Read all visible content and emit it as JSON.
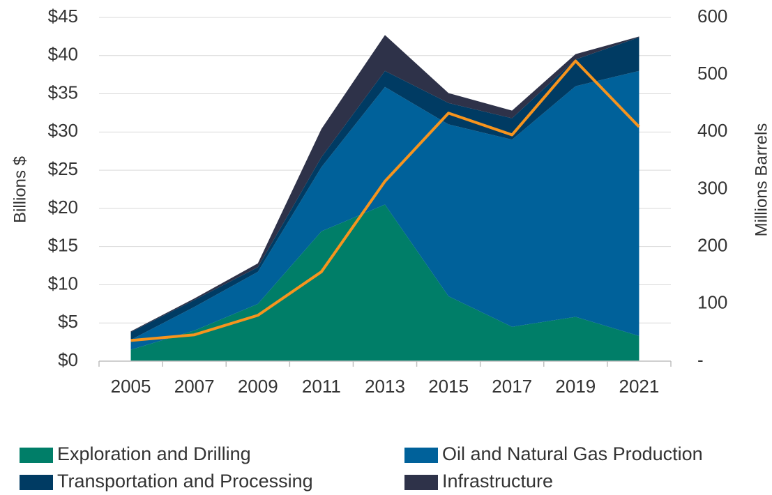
{
  "chart_data": {
    "type": "stacked_area_line",
    "categories": [
      "2005",
      "2007",
      "2009",
      "2011",
      "2013",
      "2015",
      "2017",
      "2019",
      "2021"
    ],
    "ylabel": "Billions $",
    "y2label": "Millions Barrels",
    "ylim": [
      0,
      45
    ],
    "yticks": [
      {
        "value": 0,
        "label": "$0"
      },
      {
        "value": 5,
        "label": "$5"
      },
      {
        "value": 10,
        "label": "$10"
      },
      {
        "value": 15,
        "label": "$15"
      },
      {
        "value": 20,
        "label": "$20"
      },
      {
        "value": 25,
        "label": "$25"
      },
      {
        "value": 30,
        "label": "$30"
      },
      {
        "value": 35,
        "label": "$35"
      },
      {
        "value": 40,
        "label": "$40"
      },
      {
        "value": 45,
        "label": "$45"
      }
    ],
    "y2lim": [
      0,
      600
    ],
    "y2ticks": [
      {
        "value": 0,
        "label": "-"
      },
      100,
      200,
      300,
      400,
      500,
      600
    ],
    "grid": true,
    "series": [
      {
        "name": "Exploration and Drilling",
        "color": "#007e68",
        "values": [
          1.5,
          4,
          7.5,
          17,
          20.5,
          8.5,
          4.5,
          5.8,
          3.3
        ]
      },
      {
        "name": "Oil and Natural Gas Production",
        "color": "#00619a",
        "values": [
          1.3,
          3.1,
          4.2,
          8.4,
          15.4,
          22.5,
          24.5,
          30.2,
          34.7
        ]
      },
      {
        "name": "Transportation and Processing",
        "color": "#003b63",
        "values": [
          1.0,
          0.9,
          0.6,
          1.3,
          2.1,
          2.8,
          2.8,
          3.5,
          4.4
        ]
      },
      {
        "name": "Infrastructure",
        "color": "#2e3249",
        "values": [
          0.1,
          0.2,
          0.5,
          3.7,
          4.7,
          1.3,
          1.0,
          0.7,
          0.1
        ]
      },
      {
        "type": "line",
        "axis": "y2",
        "color": "#f7941d",
        "values": [
          36,
          46,
          80,
          156,
          314,
          433,
          395,
          524,
          409
        ]
      }
    ]
  }
}
